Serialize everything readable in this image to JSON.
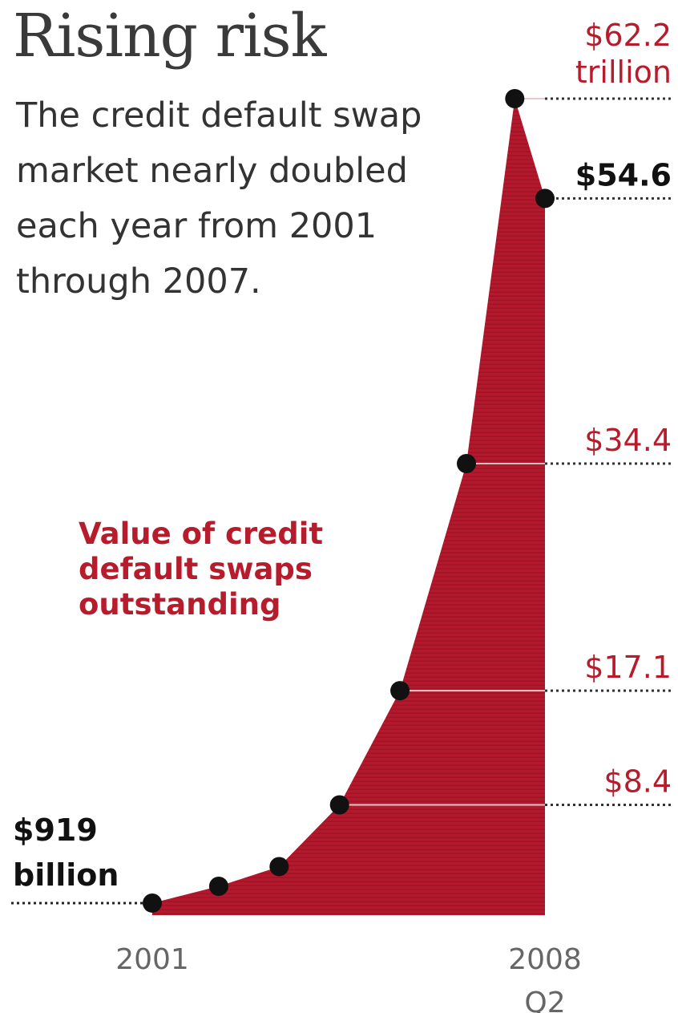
{
  "header": {
    "title": "Rising risk",
    "subtitle": "The credit default swap market nearly doubled each year from 2001 through 2007."
  },
  "colors": {
    "fill": "#b3182c",
    "highlight": "#b71c2c",
    "dark": "#111111",
    "axis": "#666666"
  },
  "chart_data": {
    "type": "area",
    "series_label": "Value of credit default swaps outstanding",
    "unit": "trillions of dollars",
    "points": [
      {
        "x": 2001.0,
        "y": 0.919,
        "label": [
          "$919",
          "billion"
        ],
        "label_color": "dark"
      },
      {
        "x": 2002.1,
        "y": 2.2
      },
      {
        "x": 2003.1,
        "y": 3.7
      },
      {
        "x": 2004.1,
        "y": 8.4,
        "label": [
          "$8.4"
        ],
        "label_color": "highlight"
      },
      {
        "x": 2005.1,
        "y": 17.1,
        "label": [
          "$17.1"
        ],
        "label_color": "highlight"
      },
      {
        "x": 2006.2,
        "y": 34.4,
        "label": [
          "$34.4"
        ],
        "label_color": "highlight"
      },
      {
        "x": 2007.0,
        "y": 62.2,
        "label": [
          "$62.2",
          "trillion"
        ],
        "label_color": "highlight"
      },
      {
        "x": 2007.5,
        "y": 54.6,
        "label": [
          "$54.6"
        ],
        "label_color": "dark"
      }
    ],
    "x_ticks": [
      {
        "x": 2001.0,
        "label": [
          "2001"
        ]
      },
      {
        "x": 2007.5,
        "label": [
          "2008",
          "Q2"
        ]
      }
    ],
    "xlim": [
      2001.0,
      2007.5
    ],
    "ylim": [
      0,
      62.2
    ],
    "grid": false,
    "legend": "none"
  }
}
